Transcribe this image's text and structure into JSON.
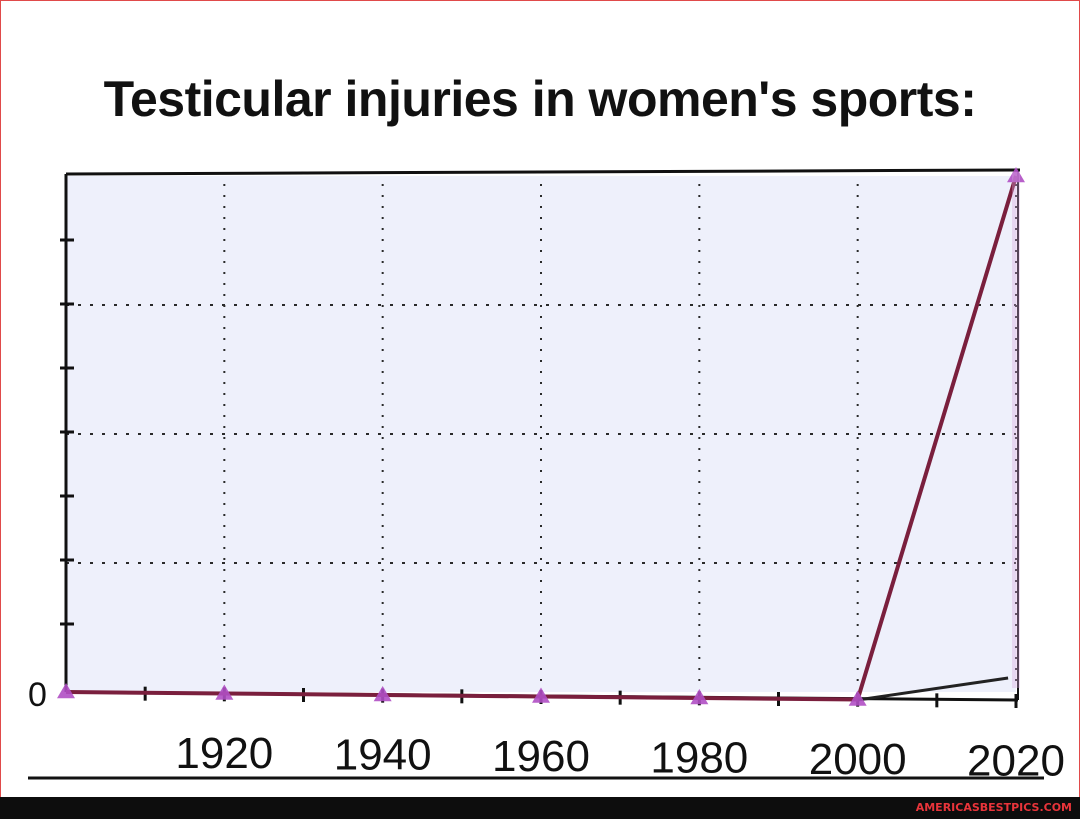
{
  "chart_data": {
    "type": "line",
    "title": "Testicular injuries in women's sports:",
    "xlabel": "",
    "ylabel": "",
    "x": [
      1900,
      1920,
      1940,
      1960,
      1980,
      2000,
      2020
    ],
    "x_tick_labels": [
      "1920",
      "1940",
      "1960",
      "1980",
      "2000",
      "2020"
    ],
    "x_ticks": [
      1920,
      1940,
      1960,
      1980,
      2000,
      2020
    ],
    "y_tick_label": "0",
    "series": [
      {
        "values": [
          0,
          0,
          0,
          0,
          0,
          0,
          100
        ],
        "color": "#7a1f3d",
        "marker_color": "#b04fc4"
      }
    ],
    "xlim": [
      1900,
      2020
    ],
    "ylim": [
      0,
      100
    ],
    "grid": true,
    "legend": "none",
    "background": "#eef0fb"
  },
  "watermark": "AMERICASBESTPICS.COM"
}
